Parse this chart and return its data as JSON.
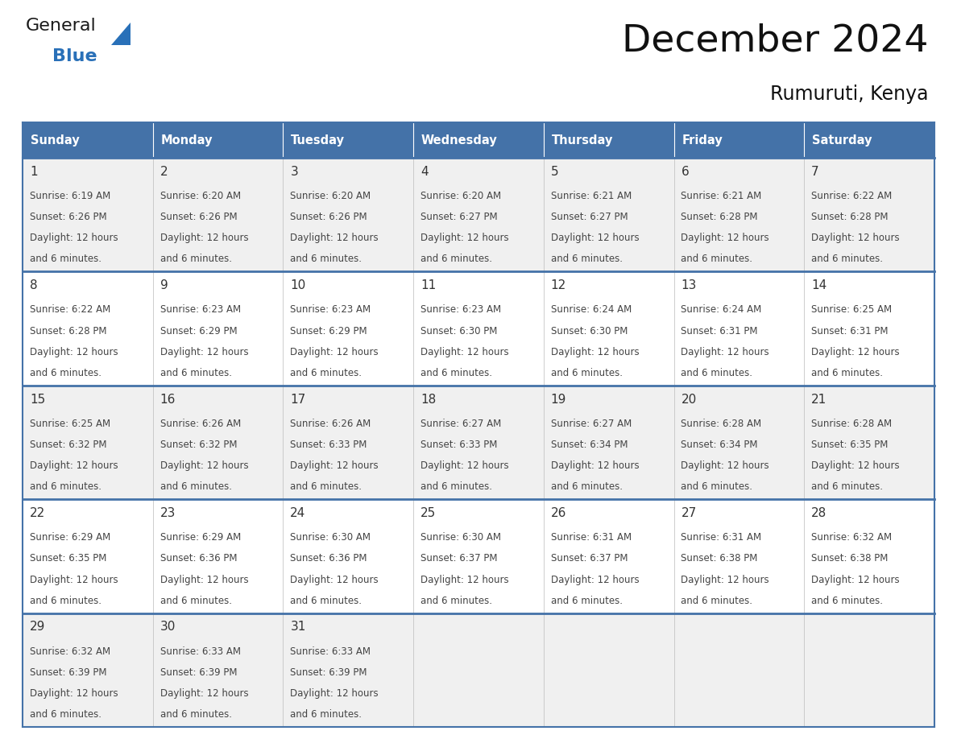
{
  "title": "December 2024",
  "subtitle": "Rumuruti, Kenya",
  "days_of_week": [
    "Sunday",
    "Monday",
    "Tuesday",
    "Wednesday",
    "Thursday",
    "Friday",
    "Saturday"
  ],
  "header_bg_color": "#4472a8",
  "header_text_color": "#ffffff",
  "cell_bg_even": "#f0f0f0",
  "cell_bg_odd": "#ffffff",
  "cell_border_top_color": "#4472a8",
  "cell_border_inner_color": "#cccccc",
  "day_number_color": "#333333",
  "cell_text_color": "#444444",
  "title_color": "#111111",
  "subtitle_color": "#111111",
  "logo_general_color": "#1a1a1a",
  "logo_blue_color": "#2970b8",
  "calendar_data": [
    [
      {
        "day": 1,
        "sunrise": "6:19 AM",
        "sunset": "6:26 PM",
        "daylight_line1": "Daylight: 12 hours",
        "daylight_line2": "and 6 minutes."
      },
      {
        "day": 2,
        "sunrise": "6:20 AM",
        "sunset": "6:26 PM",
        "daylight_line1": "Daylight: 12 hours",
        "daylight_line2": "and 6 minutes."
      },
      {
        "day": 3,
        "sunrise": "6:20 AM",
        "sunset": "6:26 PM",
        "daylight_line1": "Daylight: 12 hours",
        "daylight_line2": "and 6 minutes."
      },
      {
        "day": 4,
        "sunrise": "6:20 AM",
        "sunset": "6:27 PM",
        "daylight_line1": "Daylight: 12 hours",
        "daylight_line2": "and 6 minutes."
      },
      {
        "day": 5,
        "sunrise": "6:21 AM",
        "sunset": "6:27 PM",
        "daylight_line1": "Daylight: 12 hours",
        "daylight_line2": "and 6 minutes."
      },
      {
        "day": 6,
        "sunrise": "6:21 AM",
        "sunset": "6:28 PM",
        "daylight_line1": "Daylight: 12 hours",
        "daylight_line2": "and 6 minutes."
      },
      {
        "day": 7,
        "sunrise": "6:22 AM",
        "sunset": "6:28 PM",
        "daylight_line1": "Daylight: 12 hours",
        "daylight_line2": "and 6 minutes."
      }
    ],
    [
      {
        "day": 8,
        "sunrise": "6:22 AM",
        "sunset": "6:28 PM",
        "daylight_line1": "Daylight: 12 hours",
        "daylight_line2": "and 6 minutes."
      },
      {
        "day": 9,
        "sunrise": "6:23 AM",
        "sunset": "6:29 PM",
        "daylight_line1": "Daylight: 12 hours",
        "daylight_line2": "and 6 minutes."
      },
      {
        "day": 10,
        "sunrise": "6:23 AM",
        "sunset": "6:29 PM",
        "daylight_line1": "Daylight: 12 hours",
        "daylight_line2": "and 6 minutes."
      },
      {
        "day": 11,
        "sunrise": "6:23 AM",
        "sunset": "6:30 PM",
        "daylight_line1": "Daylight: 12 hours",
        "daylight_line2": "and 6 minutes."
      },
      {
        "day": 12,
        "sunrise": "6:24 AM",
        "sunset": "6:30 PM",
        "daylight_line1": "Daylight: 12 hours",
        "daylight_line2": "and 6 minutes."
      },
      {
        "day": 13,
        "sunrise": "6:24 AM",
        "sunset": "6:31 PM",
        "daylight_line1": "Daylight: 12 hours",
        "daylight_line2": "and 6 minutes."
      },
      {
        "day": 14,
        "sunrise": "6:25 AM",
        "sunset": "6:31 PM",
        "daylight_line1": "Daylight: 12 hours",
        "daylight_line2": "and 6 minutes."
      }
    ],
    [
      {
        "day": 15,
        "sunrise": "6:25 AM",
        "sunset": "6:32 PM",
        "daylight_line1": "Daylight: 12 hours",
        "daylight_line2": "and 6 minutes."
      },
      {
        "day": 16,
        "sunrise": "6:26 AM",
        "sunset": "6:32 PM",
        "daylight_line1": "Daylight: 12 hours",
        "daylight_line2": "and 6 minutes."
      },
      {
        "day": 17,
        "sunrise": "6:26 AM",
        "sunset": "6:33 PM",
        "daylight_line1": "Daylight: 12 hours",
        "daylight_line2": "and 6 minutes."
      },
      {
        "day": 18,
        "sunrise": "6:27 AM",
        "sunset": "6:33 PM",
        "daylight_line1": "Daylight: 12 hours",
        "daylight_line2": "and 6 minutes."
      },
      {
        "day": 19,
        "sunrise": "6:27 AM",
        "sunset": "6:34 PM",
        "daylight_line1": "Daylight: 12 hours",
        "daylight_line2": "and 6 minutes."
      },
      {
        "day": 20,
        "sunrise": "6:28 AM",
        "sunset": "6:34 PM",
        "daylight_line1": "Daylight: 12 hours",
        "daylight_line2": "and 6 minutes."
      },
      {
        "day": 21,
        "sunrise": "6:28 AM",
        "sunset": "6:35 PM",
        "daylight_line1": "Daylight: 12 hours",
        "daylight_line2": "and 6 minutes."
      }
    ],
    [
      {
        "day": 22,
        "sunrise": "6:29 AM",
        "sunset": "6:35 PM",
        "daylight_line1": "Daylight: 12 hours",
        "daylight_line2": "and 6 minutes."
      },
      {
        "day": 23,
        "sunrise": "6:29 AM",
        "sunset": "6:36 PM",
        "daylight_line1": "Daylight: 12 hours",
        "daylight_line2": "and 6 minutes."
      },
      {
        "day": 24,
        "sunrise": "6:30 AM",
        "sunset": "6:36 PM",
        "daylight_line1": "Daylight: 12 hours",
        "daylight_line2": "and 6 minutes."
      },
      {
        "day": 25,
        "sunrise": "6:30 AM",
        "sunset": "6:37 PM",
        "daylight_line1": "Daylight: 12 hours",
        "daylight_line2": "and 6 minutes."
      },
      {
        "day": 26,
        "sunrise": "6:31 AM",
        "sunset": "6:37 PM",
        "daylight_line1": "Daylight: 12 hours",
        "daylight_line2": "and 6 minutes."
      },
      {
        "day": 27,
        "sunrise": "6:31 AM",
        "sunset": "6:38 PM",
        "daylight_line1": "Daylight: 12 hours",
        "daylight_line2": "and 6 minutes."
      },
      {
        "day": 28,
        "sunrise": "6:32 AM",
        "sunset": "6:38 PM",
        "daylight_line1": "Daylight: 12 hours",
        "daylight_line2": "and 6 minutes."
      }
    ],
    [
      {
        "day": 29,
        "sunrise": "6:32 AM",
        "sunset": "6:39 PM",
        "daylight_line1": "Daylight: 12 hours",
        "daylight_line2": "and 6 minutes."
      },
      {
        "day": 30,
        "sunrise": "6:33 AM",
        "sunset": "6:39 PM",
        "daylight_line1": "Daylight: 12 hours",
        "daylight_line2": "and 6 minutes."
      },
      {
        "day": 31,
        "sunrise": "6:33 AM",
        "sunset": "6:39 PM",
        "daylight_line1": "Daylight: 12 hours",
        "daylight_line2": "and 6 minutes."
      },
      null,
      null,
      null,
      null
    ]
  ],
  "fig_width": 11.88,
  "fig_height": 9.18,
  "dpi": 100
}
